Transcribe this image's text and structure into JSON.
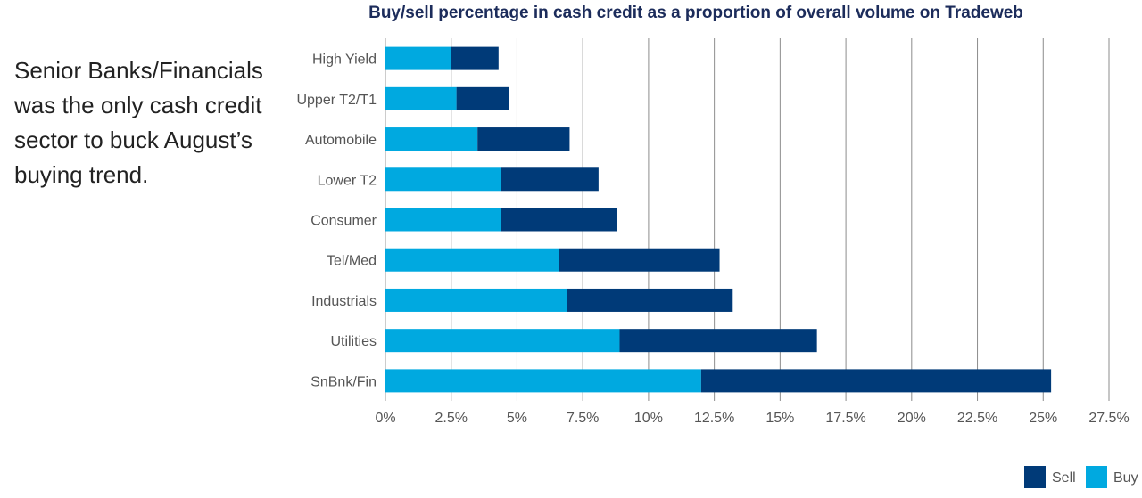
{
  "side_note": "Senior Banks/Financials was the only cash credit sector to buck August’s buying trend.",
  "chart_data": {
    "type": "bar",
    "orientation": "horizontal",
    "stacked": true,
    "title": "Buy/sell percentage in cash credit as a proportion of overall volume on Tradeweb",
    "categories": [
      "High Yield",
      "Upper T2/T1",
      "Automobile",
      "Lower T2",
      "Consumer",
      "Tel/Med",
      "Industrials",
      "Utilities",
      "SnBnk/Fin"
    ],
    "series": [
      {
        "name": "Buy",
        "color": "#00a9e0",
        "values": [
          2.5,
          2.7,
          3.5,
          4.4,
          4.4,
          6.6,
          6.9,
          8.9,
          12.0
        ]
      },
      {
        "name": "Sell",
        "color": "#003a78",
        "values": [
          1.8,
          2.0,
          3.5,
          3.7,
          4.4,
          6.1,
          6.3,
          7.5,
          13.3
        ]
      }
    ],
    "xlim": [
      0,
      27.5
    ],
    "x_ticks": [
      "0%",
      "2.5%",
      "5%",
      "7.5%",
      "10%",
      "12.5%",
      "15%",
      "17.5%",
      "20%",
      "22.5%",
      "25%",
      "27.5%"
    ],
    "grid": "vertical",
    "legend_position": "bottom-right",
    "legend_order": [
      "Sell",
      "Buy"
    ]
  }
}
